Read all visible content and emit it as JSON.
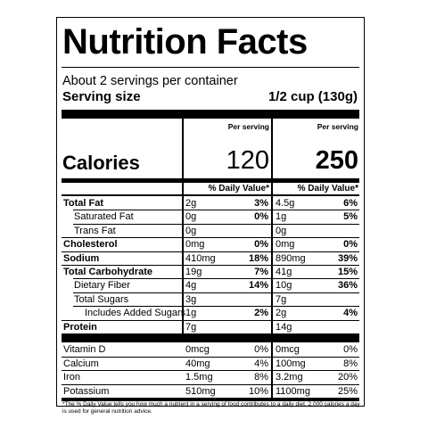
{
  "label": {
    "title": "Nutrition Facts",
    "servings": "About 2 servings per container",
    "serving_size_label": "Serving size",
    "serving_size_value": "1/2 cup (130g)",
    "per_serving": "Per serving",
    "calories_label": "Calories",
    "calories_col1": "120",
    "calories_col2": "250",
    "dv_header": "% Daily Value*",
    "nutrients": [
      {
        "name": "Total Fat",
        "bold": true,
        "indent": 0,
        "amt1": "2g",
        "pct1": "3%",
        "amt2": "4.5g",
        "pct2": "6%"
      },
      {
        "name": "Saturated Fat",
        "bold": false,
        "indent": 1,
        "amt1": "0g",
        "pct1": "0%",
        "amt2": "1g",
        "pct2": "5%"
      },
      {
        "name": "Trans Fat",
        "bold": false,
        "indent": 1,
        "amt1": "0g",
        "pct1": "",
        "amt2": "0g",
        "pct2": ""
      },
      {
        "name": "Cholesterol",
        "bold": true,
        "indent": 0,
        "amt1": "0mg",
        "pct1": "0%",
        "amt2": "0mg",
        "pct2": "0%"
      },
      {
        "name": "Sodium",
        "bold": true,
        "indent": 0,
        "amt1": "410mg",
        "pct1": "18%",
        "amt2": "890mg",
        "pct2": "39%"
      },
      {
        "name": "Total Carbohydrate",
        "bold": true,
        "indent": 0,
        "amt1": "19g",
        "pct1": "7%",
        "amt2": "41g",
        "pct2": "15%"
      },
      {
        "name": "Dietary Fiber",
        "bold": false,
        "indent": 1,
        "amt1": "4g",
        "pct1": "14%",
        "amt2": "10g",
        "pct2": "36%"
      },
      {
        "name": "Total Sugars",
        "bold": false,
        "indent": 1,
        "amt1": "3g",
        "pct1": "",
        "amt2": "7g",
        "pct2": ""
      },
      {
        "name": "Includes Added Sugars",
        "bold": false,
        "indent": 2,
        "amt1": "1g",
        "pct1": "2%",
        "amt2": "2g",
        "pct2": "4%"
      },
      {
        "name": "Protein",
        "bold": true,
        "indent": 0,
        "amt1": "7g",
        "pct1": "",
        "amt2": "14g",
        "pct2": ""
      }
    ],
    "vitamins": [
      {
        "name": "Vitamin D",
        "amt1": "0mcg",
        "pct1": "0%",
        "amt2": "0mcg",
        "pct2": "0%"
      },
      {
        "name": "Calcium",
        "amt1": "40mg",
        "pct1": "4%",
        "amt2": "100mg",
        "pct2": "8%"
      },
      {
        "name": "Iron",
        "amt1": "1.5mg",
        "pct1": "8%",
        "amt2": "3.2mg",
        "pct2": "20%"
      },
      {
        "name": "Potassium",
        "amt1": "510mg",
        "pct1": "10%",
        "amt2": "1100mg",
        "pct2": "25%"
      }
    ],
    "footnote": "*The % Daily Value tells you how much a nutrient in a serving of food contributes to a daily diet. 2,000 calories a day is used for general nutrition advice."
  }
}
